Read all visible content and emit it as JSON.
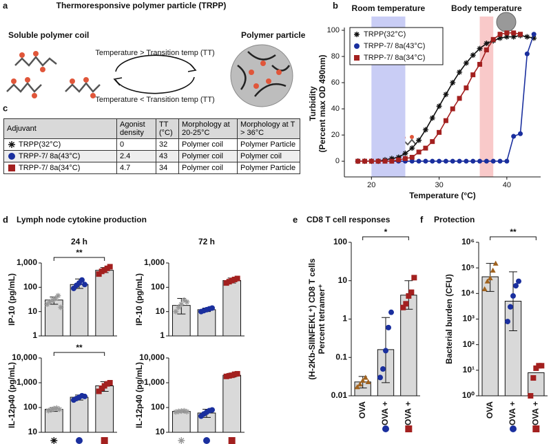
{
  "panel_a": {
    "label": "a",
    "title": "Thermoresponsive polymer particle (TRPP)",
    "left": "Soluble polymer coil",
    "right": "Polymer particle",
    "forward": "Temperature > Transition temp (TT)",
    "backward": "Temperature < Transition temp (TT)"
  },
  "panel_c": {
    "label": "c",
    "table": {
      "header": [
        "Adjuvant",
        "Agonist density",
        "TT (°C)",
        "Morphology at 20-25°C",
        "Morphology at T > 36°C"
      ],
      "rows": [
        [
          "TRPP(32°C)",
          "0",
          "32",
          "Polymer coil",
          "Polymer Particle"
        ],
        [
          "TRPP-7/ 8a(43°C)",
          "2.4",
          "43",
          "Polymer coil",
          "Polymer coil"
        ],
        [
          "TRPP-7/ 8a(34°C)",
          "4.7",
          "34",
          "Polymer coil",
          "Polymer Particle"
        ]
      ]
    },
    "markers": [
      "star",
      "circle",
      "square"
    ],
    "colors": [
      "#111111",
      "#1a2f9e",
      "#a3201f"
    ]
  },
  "panel_d": {
    "label": "d",
    "title": "Lymph node cytokine production",
    "columns": [
      "24 h",
      "72 h"
    ]
  },
  "chart_data": [
    {
      "type": "scatter",
      "label": "b",
      "xlabel": "Temperature (°C)",
      "ylabel": [
        "Turbidity",
        "(Percent max OD 490nm)"
      ],
      "xlim": [
        16,
        45
      ],
      "xticks": [
        20,
        30,
        40
      ],
      "ylim": [
        -12,
        100
      ],
      "yticks": [
        0,
        20,
        40,
        60,
        80,
        100
      ],
      "legend": "upper left",
      "bands": [
        {
          "x": [
            20,
            25
          ],
          "color": "#c9cdf5",
          "text": "Room temperature"
        },
        {
          "x": [
            36,
            38
          ],
          "color": "#f9c9c9",
          "text": "Body temperature"
        }
      ],
      "series": [
        {
          "name": "TRPP(32°C)",
          "color": "#111111",
          "marker": "star",
          "x": [
            18,
            19,
            20,
            21,
            22,
            23,
            24,
            25,
            26,
            27,
            28,
            29,
            30,
            31,
            32,
            33,
            34,
            35,
            36,
            37,
            38,
            39,
            40,
            41,
            42,
            43,
            44
          ],
          "values": [
            0,
            0,
            0,
            0,
            1,
            2,
            3,
            6,
            10,
            16,
            24,
            33,
            42,
            51,
            60,
            68,
            75,
            81,
            86,
            90,
            92,
            94,
            95,
            95,
            96,
            95,
            94
          ]
        },
        {
          "name": "TRPP-7/ 8a(43°C)",
          "color": "#1a2f9e",
          "marker": "circle",
          "x": [
            18,
            19,
            20,
            21,
            22,
            23,
            24,
            25,
            26,
            27,
            28,
            29,
            30,
            31,
            32,
            33,
            34,
            35,
            36,
            37,
            38,
            39,
            40,
            41,
            42,
            43,
            44
          ],
          "values": [
            0,
            0,
            0,
            0,
            0,
            0,
            0,
            0,
            0,
            0,
            0,
            0,
            0,
            0,
            0,
            0,
            0,
            0,
            0,
            0,
            0,
            0,
            0,
            19,
            21,
            82,
            97
          ]
        },
        {
          "name": "TRPP-7/ 8a(34°C)",
          "color": "#a3201f",
          "marker": "square",
          "x": [
            18,
            19,
            20,
            21,
            22,
            23,
            24,
            25,
            26,
            27,
            28,
            29,
            30,
            31,
            32,
            33,
            34,
            35,
            36,
            37,
            38,
            39,
            40,
            41,
            42
          ],
          "values": [
            0,
            0,
            0,
            0,
            0,
            0,
            1,
            2,
            3,
            7,
            10,
            15,
            22,
            31,
            40,
            48,
            56,
            66,
            74,
            85,
            93,
            97,
            98,
            98,
            97
          ]
        }
      ]
    },
    {
      "type": "bar",
      "log": true,
      "ylabel": "IP-10 (pg/mL)",
      "ylim": [
        1,
        1000
      ],
      "yticks": [
        1,
        10,
        100,
        {
          "value": 1000,
          "label": "1,000"
        }
      ],
      "markers": [
        "star",
        "circle",
        "square"
      ],
      "colors": [
        "#999999",
        "#1a2f9e",
        "#a3201f"
      ],
      "values": [
        30,
        130,
        500
      ],
      "error_ranges": [
        [
          20,
          40
        ],
        [
          90,
          220
        ],
        [
          400,
          650
        ]
      ],
      "points": [
        [
          20,
          25,
          30,
          35,
          45,
          15
        ],
        [
          90,
          120,
          150,
          200,
          130
        ],
        [
          350,
          450,
          500,
          600,
          700
        ]
      ],
      "significance": "**"
    },
    {
      "type": "bar",
      "log": true,
      "ylabel": "IP-10 (pg/mL)",
      "ylim": [
        1,
        1000
      ],
      "yticks": [
        1,
        10,
        100,
        {
          "value": 1000,
          "label": "1,000"
        }
      ],
      "markers": [
        "star",
        "circle",
        "square"
      ],
      "colors": [
        "#999999",
        "#1a2f9e",
        "#a3201f"
      ],
      "values": [
        18,
        12,
        190
      ],
      "error_ranges": [
        [
          8,
          35
        ],
        [
          10,
          14
        ],
        [
          150,
          240
        ]
      ],
      "points": [
        [
          10,
          15,
          20,
          30,
          25
        ],
        [
          10,
          11,
          12,
          13,
          14
        ],
        [
          150,
          170,
          190,
          210,
          230
        ]
      ]
    },
    {
      "type": "bar",
      "log": true,
      "ylabel": "IL-12p40 (pg/mL)",
      "ylim": [
        10,
        10000
      ],
      "yticks": [
        10,
        100,
        {
          "value": 1000,
          "label": "1,000"
        },
        {
          "value": 10000,
          "label": "10,000"
        }
      ],
      "markers": [
        "star",
        "circle",
        "square"
      ],
      "colors": [
        "#999999",
        "#1a2f9e",
        "#a3201f"
      ],
      "category_markers": [
        {
          "shape": "star",
          "color": "#111111"
        },
        {
          "shape": "circle",
          "color": "#1a2f9e"
        },
        {
          "shape": "square",
          "color": "#a3201f"
        }
      ],
      "values": [
        85,
        260,
        750
      ],
      "error_ranges": [
        [
          70,
          100
        ],
        [
          200,
          320
        ],
        [
          450,
          1100
        ]
      ],
      "points": [
        [
          75,
          80,
          90,
          95,
          85
        ],
        [
          200,
          230,
          260,
          300,
          280
        ],
        [
          450,
          600,
          750,
          900,
          1000
        ]
      ],
      "significance": "**"
    },
    {
      "type": "bar",
      "log": true,
      "ylabel": "IL-12p40 (pg/mL)",
      "ylim": [
        10,
        10000
      ],
      "yticks": [
        10,
        100,
        {
          "value": 1000,
          "label": "1,000"
        },
        {
          "value": 10000,
          "label": "10,000"
        }
      ],
      "markers": [
        "star",
        "circle",
        "square"
      ],
      "colors": [
        "#999999",
        "#1a2f9e",
        "#a3201f"
      ],
      "category_markers": [
        {
          "shape": "star",
          "color": "#999999"
        },
        {
          "shape": "circle",
          "color": "#1a2f9e"
        },
        {
          "shape": "square",
          "color": "#a3201f"
        }
      ],
      "values": [
        70,
        60,
        2000
      ],
      "error_ranges": [
        [
          65,
          75
        ],
        [
          40,
          85
        ],
        [
          1700,
          2400
        ]
      ],
      "points": [
        [
          66,
          70,
          72,
          74,
          68
        ],
        [
          45,
          55,
          65,
          75,
          80
        ],
        [
          1800,
          1900,
          2000,
          2200,
          2300
        ]
      ]
    },
    {
      "type": "bar",
      "log": true,
      "label": "e",
      "title": "CD8 T cell responses",
      "ylabel": [
        "Percent tetramer⁺",
        "(H-2Kb-SIINFEKL⁺) CD8 T cells"
      ],
      "ylim": [
        0.01,
        100
      ],
      "yticks": [
        0.01,
        0.1,
        1,
        10,
        100
      ],
      "categories": [
        "OVA",
        "OVA +",
        "OVA +"
      ],
      "markers": [
        "triangle",
        "circle",
        "square"
      ],
      "colors": [
        "#a0621e",
        "#1a2f9e",
        "#a3201f"
      ],
      "category_markers": [
        null,
        {
          "shape": "circle",
          "color": "#1a2f9e"
        },
        {
          "shape": "square",
          "color": "#a3201f"
        }
      ],
      "values": [
        0.023,
        0.16,
        4.2
      ],
      "error_ranges": [
        [
          0.016,
          0.032
        ],
        [
          0.022,
          1.1
        ],
        [
          1.8,
          10
        ]
      ],
      "points": [
        [
          0.017,
          0.02,
          0.025,
          0.03,
          0.023
        ],
        [
          0.03,
          0.05,
          0.15,
          0.6,
          1.5
        ],
        [
          2,
          2.5,
          4,
          5,
          12
        ]
      ],
      "significance": "*"
    },
    {
      "type": "bar",
      "log": true,
      "label": "f",
      "title": "Protection",
      "ylabel": "Bacterial burden (CFU)",
      "ylim": [
        1,
        1000000
      ],
      "yticks": [
        {
          "value": 1,
          "label": "10⁰"
        },
        {
          "value": 10,
          "label": "10¹"
        },
        {
          "value": 100,
          "label": "10²"
        },
        {
          "value": 1000,
          "label": "10³"
        },
        {
          "value": 10000,
          "label": "10⁴"
        },
        {
          "value": 100000,
          "label": "10⁵"
        },
        {
          "value": 1000000,
          "label": "10⁶"
        }
      ],
      "categories": [
        "OVA",
        "OVA +",
        "OVA +"
      ],
      "markers": [
        "triangle",
        "circle",
        "square"
      ],
      "colors": [
        "#a0621e",
        "#1a2f9e",
        "#a3201f"
      ],
      "category_markers": [
        null,
        {
          "shape": "circle",
          "color": "#1a2f9e"
        },
        {
          "shape": "square",
          "color": "#a3201f"
        }
      ],
      "values": [
        45000,
        5000,
        8
      ],
      "error_ranges": [
        [
          12000,
          150000
        ],
        [
          350,
          70000
        ],
        null
      ],
      "points": [
        [
          15000,
          30000,
          40000,
          80000,
          150000
        ],
        [
          800,
          3000,
          8000,
          20000,
          30000
        ],
        [
          1,
          5,
          12,
          15,
          15
        ]
      ],
      "significance": "**"
    }
  ]
}
